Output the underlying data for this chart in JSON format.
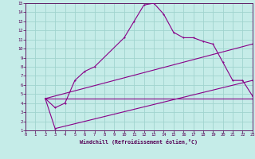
{
  "xlabel": "Windchill (Refroidissement éolien,°C)",
  "bg_color": "#c5ece8",
  "grid_color": "#a0d4ce",
  "line_color": "#880088",
  "spine_color": "#550055",
  "xlim": [
    0,
    23
  ],
  "ylim": [
    1,
    15
  ],
  "xticks": [
    0,
    1,
    2,
    3,
    4,
    5,
    6,
    7,
    8,
    9,
    10,
    11,
    12,
    13,
    14,
    15,
    16,
    17,
    18,
    19,
    20,
    21,
    22,
    23
  ],
  "yticks": [
    1,
    2,
    3,
    4,
    5,
    6,
    7,
    8,
    9,
    10,
    11,
    12,
    13,
    14,
    15
  ],
  "main_x": [
    2,
    3,
    4,
    5,
    6,
    7,
    10,
    11,
    12,
    13,
    14,
    15,
    16,
    17,
    18,
    19,
    20,
    21,
    22,
    23
  ],
  "main_y": [
    4.5,
    3.5,
    4.0,
    6.5,
    7.5,
    8.0,
    11.2,
    13.0,
    14.8,
    15.0,
    13.8,
    11.8,
    11.2,
    11.2,
    10.8,
    10.5,
    8.5,
    6.5,
    6.5,
    4.8
  ],
  "line1_x": [
    2,
    23
  ],
  "line1_y": [
    4.5,
    4.5
  ],
  "line2_x": [
    2,
    3,
    23
  ],
  "line2_y": [
    4.5,
    1.2,
    6.5
  ],
  "line3_x": [
    2,
    23
  ],
  "line3_y": [
    4.5,
    10.5
  ]
}
